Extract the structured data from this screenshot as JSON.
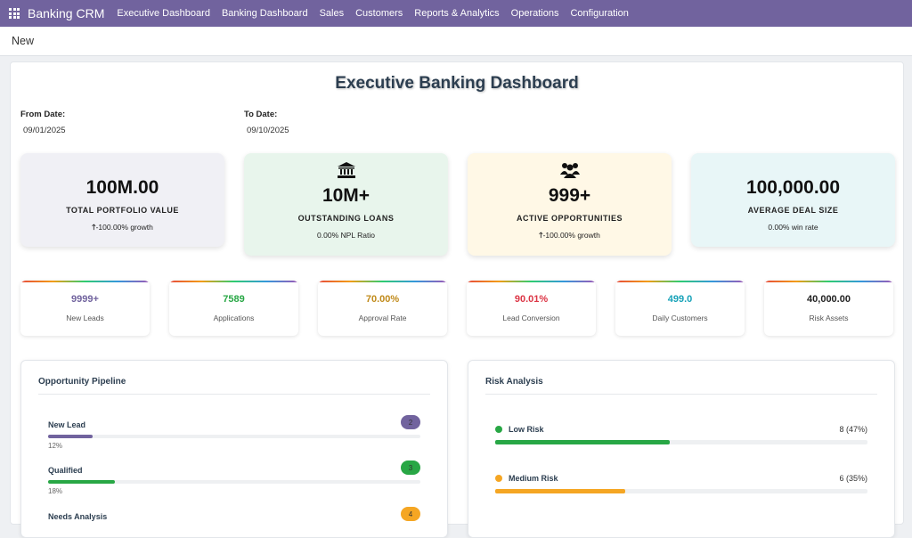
{
  "app": {
    "title": "Banking CRM"
  },
  "nav": [
    "Executive Dashboard",
    "Banking Dashboard",
    "Sales",
    "Customers",
    "Reports & Analytics",
    "Operations",
    "Configuration"
  ],
  "breadcrumb": "New",
  "dashboard": {
    "title": "Executive Banking Dashboard",
    "from_label": "From Date:",
    "from_value": "09/01/2025",
    "to_label": "To Date:",
    "to_value": "09/10/2025"
  },
  "kpis": [
    {
      "value": "100M.00",
      "label": "TOTAL PORTFOLIO VALUE",
      "sub": "-100.00% growth",
      "icon": "up-arrow-icon",
      "bg": "#f0f0f5"
    },
    {
      "value": "10M+",
      "label": "OUTSTANDING LOANS",
      "sub": "0.00% NPL Ratio",
      "icon": "bank-icon",
      "bg": "#e8f5ec"
    },
    {
      "value": "999+",
      "label": "ACTIVE OPPORTUNITIES",
      "sub": "-100.00% growth",
      "icon": "users-icon",
      "bg": "#fff8e6"
    },
    {
      "value": "100,000.00",
      "label": "AVERAGE DEAL SIZE",
      "sub": "0.00% win rate",
      "icon": "none",
      "bg": "#e8f6f7"
    }
  ],
  "metrics": [
    {
      "value": "9999+",
      "label": "New Leads",
      "color": "#71639e"
    },
    {
      "value": "7589",
      "label": "Applications",
      "color": "#28a745"
    },
    {
      "value": "70.00%",
      "label": "Approval Rate",
      "color": "#c08a1a"
    },
    {
      "value": "90.01%",
      "label": "Lead Conversion",
      "color": "#dc3545"
    },
    {
      "value": "499.0",
      "label": "Daily Customers",
      "color": "#17a2b8"
    },
    {
      "value": "40,000.00",
      "label": "Risk Assets",
      "color": "#222222"
    }
  ],
  "pipeline": {
    "title": "Opportunity Pipeline",
    "stages": [
      {
        "name": "New Lead",
        "count": "2",
        "pct_label": "12%",
        "pct": 12,
        "color": "#71639e"
      },
      {
        "name": "Qualified",
        "count": "3",
        "pct_label": "18%",
        "pct": 18,
        "color": "#28a745"
      },
      {
        "name": "Needs Analysis",
        "count": "4",
        "pct_label": "",
        "pct": 0,
        "color": "#f5a623"
      }
    ]
  },
  "risk": {
    "title": "Risk Analysis",
    "levels": [
      {
        "name": "Low Risk",
        "count": "8 (47%)",
        "pct": 47,
        "color": "#28a745"
      },
      {
        "name": "Medium Risk",
        "count": "6 (35%)",
        "pct": 35,
        "color": "#f5a623"
      }
    ]
  }
}
